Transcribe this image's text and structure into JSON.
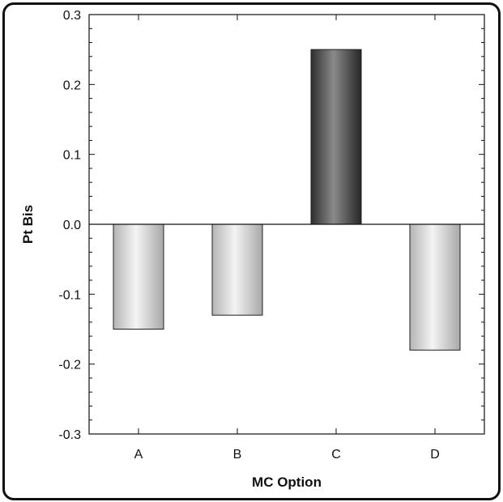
{
  "chart_data": {
    "type": "bar",
    "title": "",
    "xlabel": "MC Option",
    "ylabel": "Pt Bis",
    "categories": [
      "A",
      "B",
      "C",
      "D"
    ],
    "values": [
      -0.15,
      -0.13,
      0.25,
      -0.18
    ],
    "ylim": [
      -0.3,
      0.3
    ],
    "yticks": [
      -0.3,
      -0.2,
      -0.1,
      0.0,
      0.1,
      0.2,
      0.3
    ],
    "ytick_labels": [
      "-0.3",
      "-0.2",
      "-0.1",
      "0.0",
      "0.1",
      "0.2",
      "0.3"
    ],
    "grid": false,
    "legend": "none",
    "colors": {
      "highlight_bar": "#3a3a3a",
      "normal_bar": "#c8c8c8",
      "axis": "#111111",
      "frame": "#111111"
    }
  }
}
